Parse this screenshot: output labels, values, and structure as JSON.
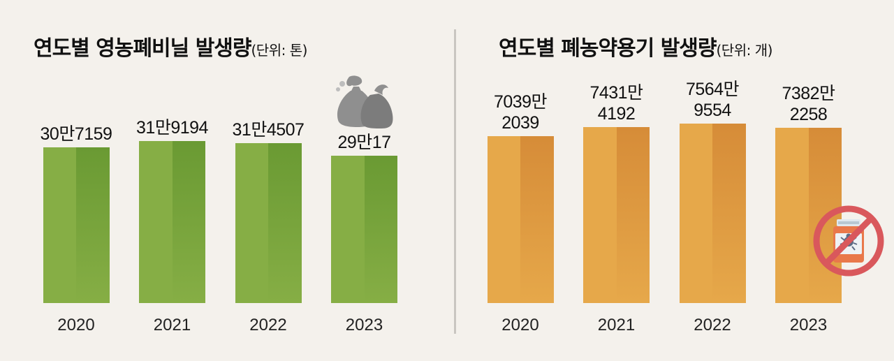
{
  "chart_data": [
    {
      "type": "bar",
      "title": "연도별 영농폐비닐 발생량",
      "unit_note": "(단위: 톤)",
      "categories": [
        "2020",
        "2021",
        "2022",
        "2023"
      ],
      "values": [
        307159,
        319194,
        314507,
        290017
      ],
      "data_labels": [
        "30만7159",
        "31만9194",
        "31만4507",
        "29만17"
      ],
      "ylim": [
        0,
        319194
      ],
      "color": "#86ae45",
      "shade_color": "#6a9a33",
      "icon": "trash-bag-icon"
    },
    {
      "type": "bar",
      "title": "연도별 폐농약용기 발생량",
      "unit_note": "(단위: 개)",
      "categories": [
        "2020",
        "2021",
        "2022",
        "2023"
      ],
      "values": [
        70392039,
        74314192,
        75649554,
        73822258
      ],
      "data_labels": [
        "7039만\n2039",
        "7431만\n4192",
        "7564만\n9554",
        "7382만\n2258"
      ],
      "ylim": [
        0,
        75649554
      ],
      "color": "#e6a84a",
      "shade_color": "#d68c38",
      "icon": "no-pesticide-icon"
    }
  ]
}
